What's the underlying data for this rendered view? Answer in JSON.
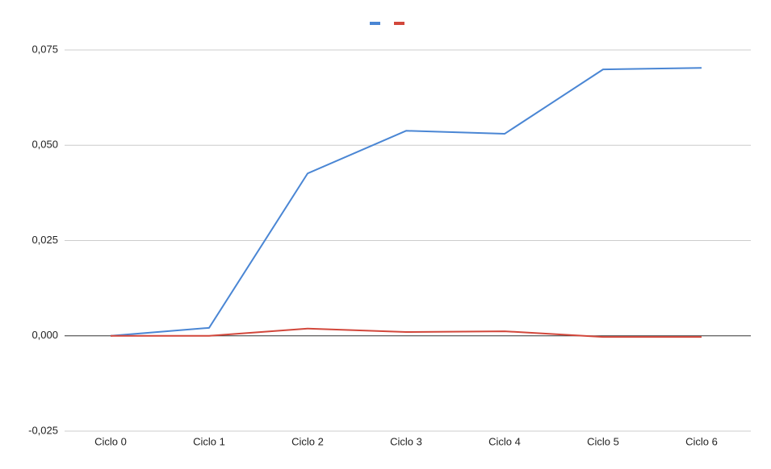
{
  "chart_data": {
    "type": "line",
    "categories": [
      "Ciclo 0",
      "Ciclo 1",
      "Ciclo 2",
      "Ciclo 3",
      "Ciclo 4",
      "Ciclo 5",
      "Ciclo 6"
    ],
    "series": [
      {
        "color": "#4a86d4",
        "values": [
          0,
          0.0021,
          0.0426,
          0.0538,
          0.053,
          0.0699,
          0.0703
        ]
      },
      {
        "color": "#d2473b",
        "values": [
          0,
          0,
          0.0019,
          0.001,
          0.0012,
          -0.0003,
          -0.0003
        ]
      }
    ],
    "ylim": [
      -0.025,
      0.075
    ],
    "yticks": [
      {
        "value": -0.025,
        "label": "-0,025"
      },
      {
        "value": 0,
        "label": "0,000"
      },
      {
        "value": 0.025,
        "label": "0,025"
      },
      {
        "value": 0.05,
        "label": "0,050"
      },
      {
        "value": 0.075,
        "label": "0,075"
      }
    ],
    "grid": true
  }
}
